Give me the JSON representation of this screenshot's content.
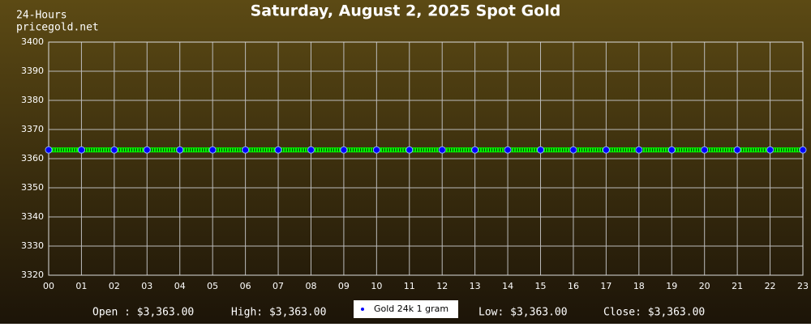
{
  "chart_data": {
    "type": "line",
    "title": "Saturday, August 2, 2025 Spot Gold",
    "subtitle": "24-Hours",
    "source": "pricegold.net",
    "categories": [
      "00",
      "01",
      "02",
      "03",
      "04",
      "05",
      "06",
      "07",
      "08",
      "09",
      "10",
      "11",
      "12",
      "13",
      "14",
      "15",
      "16",
      "17",
      "18",
      "19",
      "20",
      "21",
      "22",
      "23"
    ],
    "series": [
      {
        "name": "Gold 24k 1 gram",
        "color": "#00ff00",
        "marker_color": "#0000ff",
        "values": [
          3363,
          3363,
          3363,
          3363,
          3363,
          3363,
          3363,
          3363,
          3363,
          3363,
          3363,
          3363,
          3363,
          3363,
          3363,
          3363,
          3363,
          3363,
          3363,
          3363,
          3363,
          3363,
          3363,
          3363
        ]
      }
    ],
    "ylim": [
      3320,
      3400
    ],
    "yticks": [
      3320,
      3330,
      3340,
      3350,
      3360,
      3370,
      3380,
      3390,
      3400
    ],
    "grid": true,
    "legend": "bottom",
    "summary": [
      "Open : $3,363.00",
      "High: $3,363.00",
      "Low: $3,363.00",
      "Close: $3,363.00"
    ]
  }
}
